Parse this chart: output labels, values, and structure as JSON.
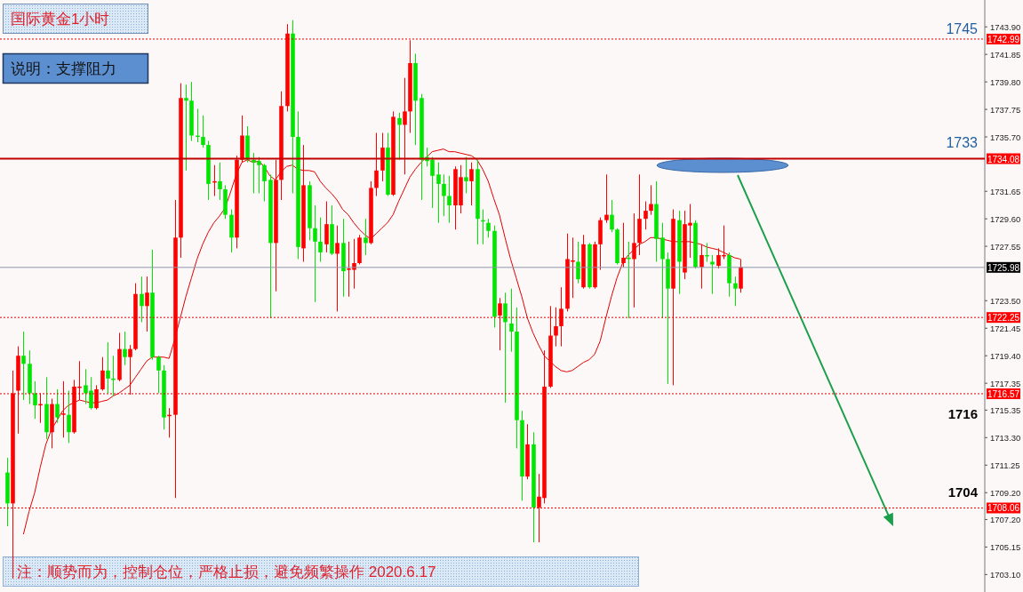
{
  "chart_data": {
    "type": "candlestick",
    "title": "国际黄金1小时",
    "subtitle": "说明：支撑阻力",
    "categories": [
      null,
      null,
      null,
      null,
      null,
      null,
      null,
      null,
      null,
      null,
      null,
      null,
      null,
      null,
      null,
      null,
      null,
      null,
      null,
      null,
      null,
      null,
      null,
      null,
      null,
      null,
      null,
      null,
      null,
      null,
      null,
      null,
      null,
      null,
      null,
      null,
      null,
      null,
      null,
      null,
      null,
      null,
      null,
      null,
      null,
      null,
      null,
      null,
      null,
      null,
      null,
      null,
      null,
      null,
      null,
      null,
      null,
      null,
      null,
      null,
      null,
      null,
      null,
      null,
      null,
      null,
      null,
      null,
      null,
      null,
      null,
      null,
      null,
      null,
      null,
      null,
      null,
      null,
      null,
      null,
      null,
      null,
      null,
      null,
      null,
      null,
      null,
      null,
      null,
      null,
      null,
      null,
      null,
      null,
      null,
      null,
      null,
      null,
      null,
      null,
      null,
      null,
      null,
      null,
      null,
      null,
      null,
      null,
      null,
      null,
      null,
      null,
      null,
      null,
      null,
      null,
      null,
      null,
      null,
      null,
      null,
      null,
      null,
      null,
      null,
      null,
      null,
      null,
      null,
      null,
      null,
      null
    ],
    "colors": [
      "#00e600",
      "#ff0000",
      "#ff0000",
      "#00e600",
      "#00e600",
      "#00e600",
      "#ff0000",
      "#00e600",
      "#ff0000",
      "#00e600",
      "#ff0000",
      "#00e600",
      "#ff0000",
      "#ff0000",
      "#00e600",
      "#00e600",
      "#ff0000",
      "#ff0000",
      "#00e600",
      "#00e600",
      "#ff0000",
      "#00e600",
      "#ff0000",
      "#ff0000",
      "#00e600",
      "#ff0000",
      "#00e600",
      "#00e600",
      "#00e600",
      "#ff0000",
      "#ff0000",
      "#ff0000",
      "#00e600",
      "#00e600",
      "#00e600",
      "#00e600",
      "#00e600",
      "#ff0000",
      "#00e600",
      "#00e600",
      "#00e600",
      "#ff0000",
      "#ff0000",
      "#00e600",
      "#00e600",
      "#00e600",
      "#00e600",
      "#00e600",
      "#ff0000",
      "#ff0000",
      "#ff0000",
      "#00e600",
      "#00e600",
      "#ff0000",
      "#00e600",
      "#00e600",
      "#00e600",
      "#ff0000",
      "#00e600",
      "#ff0000",
      "#00e600",
      "#ff0000",
      "#ff0000",
      "#ff0000",
      "#00e600",
      "#ff0000",
      "#ff0000",
      "#ff0000",
      "#00e600",
      "#ff0000",
      "#00e600",
      "#ff0000",
      "#ff0000",
      "#00e600",
      "#00e600",
      "#00e600",
      "#00e600",
      "#00e600",
      "#00e600",
      "#00e600",
      "#ff0000",
      "#ff0000",
      "#00e600",
      "#ff0000",
      "#00e600",
      "#00e600",
      "#00e600",
      "#00e600",
      "#ff0000",
      "#00e600",
      "#00e600",
      "#00e600",
      "#00e600",
      "#ff0000",
      "#00e600",
      "#ff0000",
      "#ff0000",
      "#ff0000",
      "#ff0000",
      "#ff0000",
      "#ff0000",
      "#ff0000",
      "#00e600",
      "#ff0000",
      "#00e600",
      "#ff0000",
      "#ff0000",
      "#ff0000",
      "#00e600",
      "#00e600",
      "#ff0000",
      "#00e600",
      "#ff0000",
      "#ff0000",
      "#ff0000",
      "#ff0000",
      "#00e600",
      "#00e600",
      "#00e600",
      "#ff0000",
      "#00e600",
      "#ff0000",
      "#ff0000",
      "#00e600",
      "#ff0000",
      "#00e600",
      "#00e600",
      "#ff0000",
      "#ff0000",
      "#00e600",
      "#00e600",
      "#ff0000"
    ],
    "ohlc": [
      [
        1710.7,
        1711.8,
        1706.7,
        1708.4
      ],
      [
        1708.4,
        1718.3,
        1702.8,
        1716.6
      ],
      [
        1716.8,
        1720.1,
        1713.6,
        1719.4
      ],
      [
        1719.4,
        1721.2,
        1716.1,
        1718.8
      ],
      [
        1718.8,
        1719.8,
        1715.8,
        1716.6
      ],
      [
        1716.6,
        1717.5,
        1714.7,
        1715.7
      ],
      [
        1715.7,
        1716.6,
        1714.4,
        1715.8
      ],
      [
        1715.8,
        1717.8,
        1713.2,
        1713.7
      ],
      [
        1713.7,
        1716.2,
        1712.5,
        1715.8
      ],
      [
        1715.8,
        1716.9,
        1714.4,
        1714.8
      ],
      [
        1715.0,
        1717.5,
        1713.3,
        1715.1
      ],
      [
        1715.0,
        1716.8,
        1712.9,
        1713.7
      ],
      [
        1713.7,
        1717.6,
        1713.6,
        1717.1
      ],
      [
        1717.0,
        1719.0,
        1716.1,
        1717.1
      ],
      [
        1717.2,
        1718.4,
        1715.8,
        1716.6
      ],
      [
        1716.8,
        1717.8,
        1715.4,
        1715.5
      ],
      [
        1715.5,
        1717.2,
        1715.4,
        1716.9
      ],
      [
        1716.9,
        1719.3,
        1716.8,
        1718.3
      ],
      [
        1718.3,
        1720.4,
        1716.6,
        1717.7
      ],
      [
        1717.7,
        1719.4,
        1716.4,
        1717.6
      ],
      [
        1717.6,
        1721.1,
        1717.5,
        1719.9
      ],
      [
        1719.9,
        1721.2,
        1718.7,
        1719.3
      ],
      [
        1719.3,
        1720.2,
        1716.5,
        1719.9
      ],
      [
        1719.9,
        1724.8,
        1719.8,
        1724.0
      ],
      [
        1724.0,
        1725.3,
        1721.9,
        1723.1
      ],
      [
        1723.1,
        1725.3,
        1721.2,
        1724.1
      ],
      [
        1724.1,
        1727.3,
        1719.1,
        1719.3
      ],
      [
        1719.3,
        1719.4,
        1716.6,
        1718.3
      ],
      [
        1718.3,
        1718.7,
        1713.9,
        1714.8
      ],
      [
        1714.9,
        1715.5,
        1713.3,
        1715.0
      ],
      [
        1715.0,
        1731.0,
        1708.8,
        1728.2
      ],
      [
        1728.2,
        1739.7,
        1726.7,
        1738.6
      ],
      [
        1738.6,
        1739.6,
        1733.2,
        1738.4
      ],
      [
        1738.4,
        1739.8,
        1735.4,
        1735.8
      ],
      [
        1735.8,
        1737.8,
        1735.3,
        1735.7
      ],
      [
        1735.7,
        1737.3,
        1734.9,
        1735.1
      ],
      [
        1735.1,
        1735.4,
        1731.0,
        1732.2
      ],
      [
        1732.3,
        1733.6,
        1731.3,
        1732.4
      ],
      [
        1732.4,
        1733.8,
        1731.0,
        1731.8
      ],
      [
        1731.8,
        1732.1,
        1729.6,
        1729.9
      ],
      [
        1729.9,
        1730.3,
        1727.1,
        1728.2
      ],
      [
        1728.2,
        1734.3,
        1727.4,
        1734.0
      ],
      [
        1734.0,
        1737.3,
        1733.8,
        1735.8
      ],
      [
        1735.8,
        1736.5,
        1733.8,
        1734.0
      ],
      [
        1734.0,
        1734.5,
        1731.5,
        1733.8
      ],
      [
        1733.9,
        1734.2,
        1731.5,
        1733.6
      ],
      [
        1733.6,
        1733.7,
        1730.9,
        1732.4
      ],
      [
        1732.5,
        1732.9,
        1722.2,
        1727.8
      ],
      [
        1727.8,
        1734.0,
        1724.2,
        1732.5
      ],
      [
        1732.5,
        1739.1,
        1731.0,
        1738.0
      ],
      [
        1738.0,
        1744.1,
        1737.6,
        1743.4
      ],
      [
        1743.4,
        1744.4,
        1731.5,
        1735.7
      ],
      [
        1735.7,
        1737.6,
        1726.6,
        1727.5
      ],
      [
        1727.4,
        1735.1,
        1726.4,
        1732.1
      ],
      [
        1732.1,
        1732.4,
        1728.0,
        1728.9
      ],
      [
        1728.9,
        1730.6,
        1723.4,
        1727.9
      ],
      [
        1727.9,
        1729.7,
        1726.4,
        1727.1
      ],
      [
        1727.7,
        1730.9,
        1727.1,
        1729.2
      ],
      [
        1729.2,
        1730.6,
        1726.9,
        1727.0
      ],
      [
        1727.0,
        1729.1,
        1722.7,
        1727.8
      ],
      [
        1727.8,
        1729.6,
        1723.8,
        1725.7
      ],
      [
        1725.8,
        1727.9,
        1723.8,
        1725.9
      ],
      [
        1725.8,
        1728.1,
        1724.4,
        1726.3
      ],
      [
        1726.3,
        1728.4,
        1726.2,
        1728.2
      ],
      [
        1728.2,
        1729.6,
        1726.9,
        1727.8
      ],
      [
        1727.8,
        1732.4,
        1727.7,
        1731.9
      ],
      [
        1731.9,
        1736.0,
        1731.3,
        1733.2
      ],
      [
        1733.2,
        1736.0,
        1732.4,
        1734.9
      ],
      [
        1734.9,
        1736.0,
        1731.3,
        1731.4
      ],
      [
        1731.4,
        1737.6,
        1731.3,
        1737.2
      ],
      [
        1737.1,
        1737.5,
        1734.0,
        1736.6
      ],
      [
        1736.6,
        1740.1,
        1732.9,
        1737.6
      ],
      [
        1737.6,
        1742.9,
        1736.0,
        1741.2
      ],
      [
        1741.2,
        1741.9,
        1735.1,
        1738.4
      ],
      [
        1738.6,
        1738.9,
        1731.0,
        1734.0
      ],
      [
        1734.2,
        1734.9,
        1733.5,
        1733.9
      ],
      [
        1734.0,
        1734.2,
        1730.4,
        1732.8
      ],
      [
        1732.9,
        1733.8,
        1729.3,
        1732.2
      ],
      [
        1732.2,
        1732.9,
        1729.8,
        1731.3
      ],
      [
        1731.3,
        1732.8,
        1729.3,
        1730.6
      ],
      [
        1730.6,
        1733.5,
        1728.8,
        1733.3
      ],
      [
        1730.6,
        1733.6,
        1730.0,
        1732.7
      ],
      [
        1732.7,
        1734.2,
        1731.5,
        1732.4
      ],
      [
        1732.4,
        1733.8,
        1730.6,
        1733.3
      ],
      [
        1733.3,
        1734.0,
        1727.7,
        1729.6
      ],
      [
        1729.5,
        1730.3,
        1727.7,
        1729.4
      ],
      [
        1729.3,
        1729.6,
        1728.2,
        1728.7
      ],
      [
        1728.7,
        1729.1,
        1721.5,
        1722.3
      ],
      [
        1722.4,
        1723.7,
        1719.8,
        1723.3
      ],
      [
        1723.3,
        1724.1,
        1715.9,
        1721.9
      ],
      [
        1721.8,
        1724.4,
        1719.7,
        1721.2
      ],
      [
        1721.2,
        1723.0,
        1712.5,
        1714.6
      ],
      [
        1714.6,
        1715.3,
        1708.6,
        1710.4
      ],
      [
        1710.4,
        1714.3,
        1710.2,
        1712.8
      ],
      [
        1712.8,
        1713.7,
        1705.5,
        1708.1
      ],
      [
        1708.1,
        1710.6,
        1705.5,
        1708.9
      ],
      [
        1708.8,
        1719.8,
        1708.4,
        1717.1
      ],
      [
        1717.1,
        1723.1,
        1717.0,
        1720.9
      ],
      [
        1720.9,
        1723.0,
        1720.1,
        1721.6
      ],
      [
        1721.6,
        1724.5,
        1720.1,
        1722.9
      ],
      [
        1722.9,
        1728.5,
        1722.7,
        1726.6
      ],
      [
        1726.4,
        1728.2,
        1723.7,
        1726.5
      ],
      [
        1726.4,
        1727.9,
        1724.8,
        1725.1
      ],
      [
        1724.5,
        1728.4,
        1724.4,
        1727.7
      ],
      [
        1727.7,
        1727.8,
        1724.4,
        1724.5
      ],
      [
        1724.5,
        1727.9,
        1724.4,
        1727.7
      ],
      [
        1727.7,
        1729.7,
        1725.8,
        1729.5
      ],
      [
        1729.5,
        1732.9,
        1729.3,
        1729.9
      ],
      [
        1729.9,
        1731.0,
        1728.6,
        1728.8
      ],
      [
        1728.8,
        1728.9,
        1726.2,
        1726.3
      ],
      [
        1726.3,
        1729.3,
        1726.0,
        1726.7
      ],
      [
        1726.7,
        1727.9,
        1722.2,
        1726.6
      ],
      [
        1726.6,
        1730.0,
        1723.0,
        1727.8
      ],
      [
        1727.8,
        1732.9,
        1726.9,
        1729.6
      ],
      [
        1729.6,
        1730.9,
        1728.8,
        1730.2
      ],
      [
        1730.2,
        1732.1,
        1729.9,
        1730.7
      ],
      [
        1730.7,
        1732.4,
        1726.4,
        1728.1
      ],
      [
        1728.2,
        1729.3,
        1722.2,
        1726.6
      ],
      [
        1726.6,
        1727.1,
        1717.3,
        1724.4
      ],
      [
        1724.4,
        1730.3,
        1717.2,
        1729.6
      ],
      [
        1729.5,
        1730.2,
        1724.0,
        1726.4
      ],
      [
        1725.6,
        1730.2,
        1725.1,
        1729.2
      ],
      [
        1729.1,
        1730.7,
        1726.7,
        1729.3
      ],
      [
        1729.3,
        1729.5,
        1725.9,
        1726.0
      ],
      [
        1726.0,
        1727.7,
        1724.4,
        1726.9
      ],
      [
        1726.9,
        1727.8,
        1726.4,
        1726.8
      ],
      [
        1726.4,
        1726.9,
        1724.0,
        1726.2
      ],
      [
        1726.1,
        1727.4,
        1725.9,
        1726.9
      ],
      [
        1726.8,
        1729.1,
        1726.6,
        1726.9
      ],
      [
        1726.9,
        1727.1,
        1723.8,
        1724.8
      ],
      [
        1724.8,
        1725.3,
        1723.1,
        1724.4
      ],
      [
        1724.4,
        1726.6,
        1724.1,
        1726.0
      ]
    ],
    "series": [
      {
        "type": "line",
        "color": "#e00000",
        "values": [
          null,
          null,
          null,
          1706.1,
          1707.8,
          1709.2,
          1711.1,
          1712.8,
          1713.9,
          1714.6,
          1715.3,
          1715.7,
          1715.9,
          1716.1,
          1716.0,
          1715.9,
          1715.9,
          1716.0,
          1716.1,
          1716.4,
          1716.6,
          1716.9,
          1717.2,
          1717.8,
          1718.4,
          1719.0,
          1719.3,
          1719.3,
          1719.3,
          1719.2,
          1720.6,
          1722.2,
          1723.8,
          1725.2,
          1726.6,
          1727.7,
          1728.6,
          1729.3,
          1729.8,
          1730.4,
          1731.6,
          1732.9,
          1733.8,
          1734.0,
          1733.8,
          1733.9,
          1733.5,
          1732.8,
          1732.5,
          1733.1,
          1733.5,
          1733.6,
          1733.3,
          1733.2,
          1733.2,
          1733.1,
          1732.4,
          1731.9,
          1731.5,
          1731.0,
          1730.3,
          1729.9,
          1729.3,
          1728.8,
          1728.4,
          1728.1,
          1728.5,
          1728.9,
          1729.3,
          1729.9,
          1730.9,
          1731.8,
          1732.7,
          1733.3,
          1733.8,
          1734.2,
          1734.6,
          1734.7,
          1734.8,
          1734.6,
          1734.6,
          1734.5,
          1734.4,
          1734.3,
          1734.0,
          1733.3,
          1732.4,
          1731.1,
          1729.9,
          1728.2,
          1726.6,
          1725.2,
          1723.8,
          1722.2,
          1721.1,
          1720.2,
          1719.4,
          1719.0,
          1718.6,
          1718.3,
          1718.2,
          1718.3,
          1718.6,
          1718.9,
          1719.1,
          1719.5,
          1720.5,
          1722.2,
          1723.8,
          1725.2,
          1726.3,
          1726.9,
          1727.3,
          1727.7,
          1727.9,
          1728.2,
          1728.2,
          1728.1,
          1728.0,
          1727.9,
          1727.9,
          1727.9,
          1727.9,
          1727.8,
          1727.7,
          1727.5,
          1727.4,
          1727.3,
          1727.1,
          1726.9,
          1726.7,
          1726.6
        ]
      }
    ],
    "ylim": [
      1701.8,
      1745.9
    ],
    "yticks": [
      {
        "value": 1743.9,
        "label": "1743.90"
      },
      1741.85,
      {
        "value": 1739.8,
        "label": "1739.80"
      },
      1737.75,
      {
        "value": 1735.7,
        "label": "1735.70"
      },
      1731.65,
      {
        "value": 1729.6,
        "label": "1729.60"
      },
      1727.55,
      {
        "value": 1723.5,
        "label": "1723.50"
      },
      1721.45,
      {
        "value": 1719.4,
        "label": "1719.40"
      },
      1717.35,
      1715.35,
      {
        "value": 1713.3,
        "label": "1713.30"
      },
      1711.25,
      {
        "value": 1709.2,
        "label": "1709.20"
      },
      {
        "value": 1707.2,
        "label": "1707.20"
      },
      1705.15,
      {
        "value": 1703.1,
        "label": "1703.10"
      }
    ],
    "tick_labels": "y",
    "ref_lines": [
      {
        "axis": "y",
        "value": 1742.99,
        "label": "1742.99",
        "color": "#e00000",
        "line_style": "dotted"
      },
      {
        "axis": "y",
        "value": 1734.08,
        "label": "1734.08",
        "color": "#c00000",
        "line_style": "solid"
      },
      {
        "axis": "y",
        "value": 1725.98,
        "label": "1725.98",
        "color": "#8c96a8",
        "line_style": "solid"
      },
      {
        "axis": "y",
        "value": 1722.25,
        "label": "1722.25",
        "color": "#e00000",
        "line_style": "dotted"
      },
      {
        "axis": "y",
        "value": 1716.57,
        "label": "1716.57",
        "color": "#e00000",
        "line_style": "dotted"
      },
      {
        "axis": "y",
        "value": 1708.06,
        "label": "1708.06",
        "color": "#e00000",
        "line_style": "dotted"
      }
    ],
    "annotations": [
      "1745",
      "1733",
      "1716",
      "1704",
      "注：顺势而为，控制仓位，严格止损，避免频繁操作   2020.6.17"
    ]
  }
}
